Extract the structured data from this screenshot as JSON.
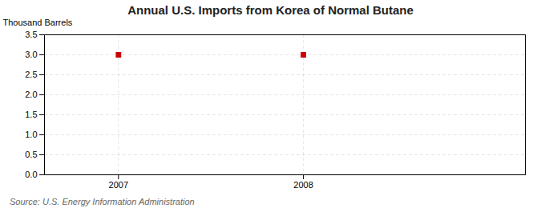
{
  "chart_data": {
    "type": "scatter",
    "title": "Annual U.S. Imports from Korea of Normal Butane",
    "ylabel": "Thousand Barrels",
    "caption": "Source: U.S. Energy Information Administration",
    "x": [
      2007,
      2008
    ],
    "values": [
      3.0,
      3.0
    ],
    "color": "#cc0000",
    "marker": "square",
    "xlim": [
      2006.6,
      2009.2
    ],
    "xticks": [
      2007,
      2008
    ],
    "ylim": [
      0.0,
      3.5
    ],
    "yticks": [
      {
        "value": 0.0,
        "label": "0.0"
      },
      0.5,
      {
        "value": 1.0,
        "label": "1.0"
      },
      1.5,
      {
        "value": 2.0,
        "label": "2.0"
      },
      2.5,
      {
        "value": 3.0,
        "label": "3.0"
      },
      3.5
    ],
    "grid": true
  }
}
